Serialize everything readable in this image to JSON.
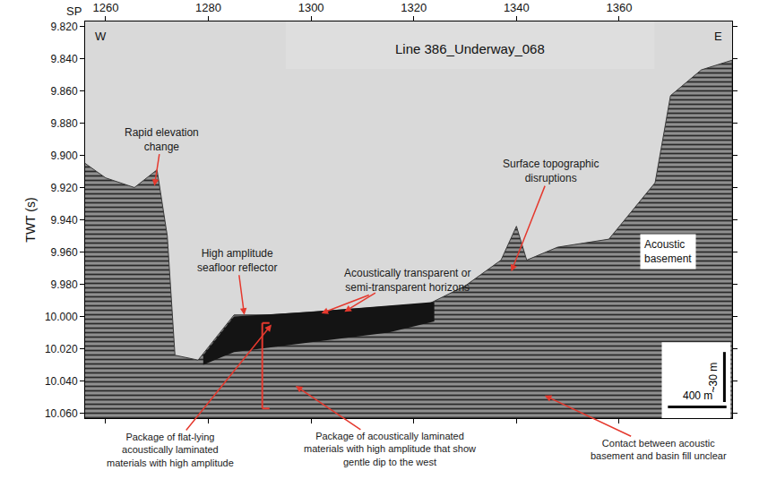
{
  "chart_data": {
    "type": "area",
    "title": "Line 386_Underway_068",
    "x_label": "SP",
    "y_label": "TWT (s)",
    "xlim": [
      1256,
      1382
    ],
    "xticks": [
      1260,
      1280,
      1300,
      1320,
      1340,
      1360
    ],
    "ylim": [
      10.063,
      9.817
    ],
    "yticks": [
      {
        "value": 9.82,
        "label": "9.820"
      },
      {
        "value": 9.84,
        "label": "9.840"
      },
      {
        "value": 9.86,
        "label": "9.860"
      },
      {
        "value": 9.88,
        "label": "9.880"
      },
      {
        "value": 9.9,
        "label": "9.900"
      },
      {
        "value": 9.92,
        "label": "9.920"
      },
      {
        "value": 9.94,
        "label": "9.940"
      },
      {
        "value": 9.96,
        "label": "9.960"
      },
      {
        "value": 9.98,
        "label": "9.980"
      },
      {
        "value": 10.0,
        "label": "10.000"
      },
      {
        "value": 10.02,
        "label": "10.020"
      },
      {
        "value": 10.04,
        "label": "10.040"
      },
      {
        "value": 10.06,
        "label": "10.060"
      }
    ],
    "grid": false,
    "color": "#8f8f8f",
    "x": [
      1256,
      1260,
      1265.6,
      1270,
      1272,
      1273.5,
      1278,
      1285,
      1292,
      1309,
      1323,
      1330,
      1337,
      1340,
      1342,
      1348,
      1358,
      1367,
      1370,
      1376,
      1382
    ],
    "values": [
      9.905,
      9.914,
      9.92,
      9.909,
      9.95,
      10.024,
      10.027,
      9.999,
      9.999,
      9.995,
      9.992,
      9.981,
      9.965,
      9.944,
      9.965,
      9.957,
      9.952,
      9.917,
      9.863,
      9.847,
      9.841
    ],
    "high_amplitude_zone": {
      "color": "#141414",
      "x": [
        1279,
        1285,
        1300,
        1315,
        1324
      ],
      "top": [
        10.024,
        10.0,
        9.997,
        9.993,
        9.991
      ],
      "bottom": [
        10.03,
        10.022,
        10.016,
        10.01,
        10.003
      ]
    },
    "labels": [
      "W",
      "E",
      "Acoustic basement"
    ],
    "annotations": {
      "color": "#e5392e",
      "items": [
        {
          "text": "Rapid elevation change",
          "points": [
            [
              1269.5,
              9.919
            ]
          ]
        },
        {
          "text": "High amplitude seafloor reflector",
          "points": [
            [
              1287,
              9.999
            ]
          ]
        },
        {
          "text": "Acoustically transparent or semi-transparent horizons",
          "points": [
            [
              1302,
              9.998
            ],
            [
              1306.5,
              9.997
            ]
          ]
        },
        {
          "text": "Surface topographic disruptions",
          "points": [
            [
              1339,
              9.972
            ]
          ]
        },
        {
          "text": "Package of flat-lying acoustically laminated materials with high amplitude",
          "points": [
            [
              1292.3,
              10.005
            ]
          ]
        },
        {
          "text": "Package of acoustically laminated materials with high amplitude that show gentle dip to the west",
          "points": [
            [
              1297,
              10.043
            ]
          ]
        },
        {
          "text": "Contact between acoustic basement and basin fill unclear",
          "points": [
            [
              1345.5,
              10.049
            ]
          ]
        }
      ]
    },
    "bracket": {
      "x": 1290.5,
      "y": [
        10.004,
        10.057
      ]
    },
    "scale_bars": [
      {
        "label": "400 m",
        "x": [
          1369.5,
          1380.9
        ],
        "y": [
          10.056,
          10.056
        ]
      },
      {
        "label": "~30 m",
        "x": [
          1380.5,
          1380.5
        ],
        "y": [
          10.022,
          10.053
        ]
      }
    ]
  }
}
